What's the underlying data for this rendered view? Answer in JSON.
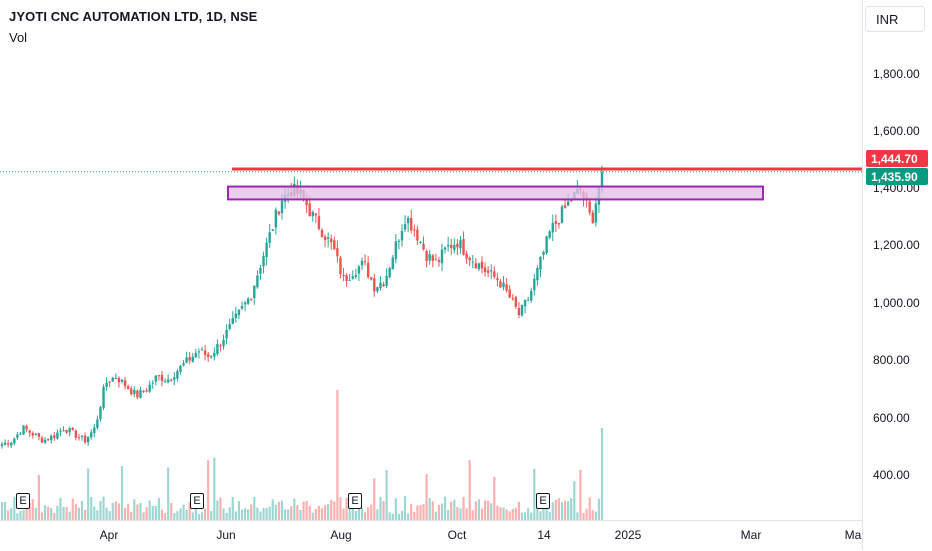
{
  "header": {
    "title": "JYOTI CNC AUTOMATION LTD, 1D, NSE",
    "vol_label": "Vol"
  },
  "price_scale": {
    "currency": "INR",
    "ticks": [
      "1,800.00",
      "1,600.00",
      "1,400.00",
      "1,200.00",
      "1,000.00",
      "800.00",
      "600.00",
      "400.00"
    ],
    "tick_values": [
      1800,
      1600,
      1400,
      1200,
      1000,
      800,
      600,
      400
    ]
  },
  "time_scale": {
    "labels": [
      "Apr",
      "Jun",
      "Aug",
      "Oct",
      "14",
      "2025",
      "Mar",
      "Ma"
    ]
  },
  "price_tags": {
    "resistance": "1,444.70",
    "last": "1,435.90"
  },
  "earnings_marker": "E",
  "colors": {
    "up": "#26a69a",
    "down": "#ef5350",
    "resistance_line": "#f23645",
    "zone_border": "#9c27b0",
    "zone_fill": "#e1bee7",
    "last_price": "#089981"
  },
  "chart_data": {
    "type": "candlestick",
    "title": "JYOTI CNC AUTOMATION LTD, 1D, NSE",
    "ylim": [
      260,
      1970
    ],
    "y_ticks": [
      400,
      600,
      800,
      1000,
      1200,
      1400,
      1600,
      1800
    ],
    "x_labels": [
      "Apr",
      "Jun",
      "Aug",
      "Oct",
      "14",
      "2025",
      "Mar",
      "Ma"
    ],
    "approx_closes": [
      590,
      600,
      640,
      620,
      600,
      615,
      640,
      620,
      600,
      640,
      780,
      800,
      770,
      740,
      760,
      800,
      790,
      820,
      850,
      880,
      860,
      900,
      950,
      1000,
      1050,
      1150,
      1250,
      1350,
      1380,
      1360,
      1300,
      1250,
      1200,
      1100,
      1130,
      1150,
      1080,
      1100,
      1200,
      1300,
      1250,
      1180,
      1150,
      1200,
      1220,
      1180,
      1150,
      1120,
      1100,
      1050,
      990,
      1050,
      1150,
      1250,
      1300,
      1350,
      1380,
      1280,
      1436
    ],
    "resistance_level": 1444.7,
    "last_price": 1435.9,
    "zone": [
      1350,
      1390
    ],
    "volume_peaks_relative": [
      0.4,
      0.2,
      0.25,
      1.0,
      0.3,
      0.6
    ],
    "earnings_markers": 4
  }
}
